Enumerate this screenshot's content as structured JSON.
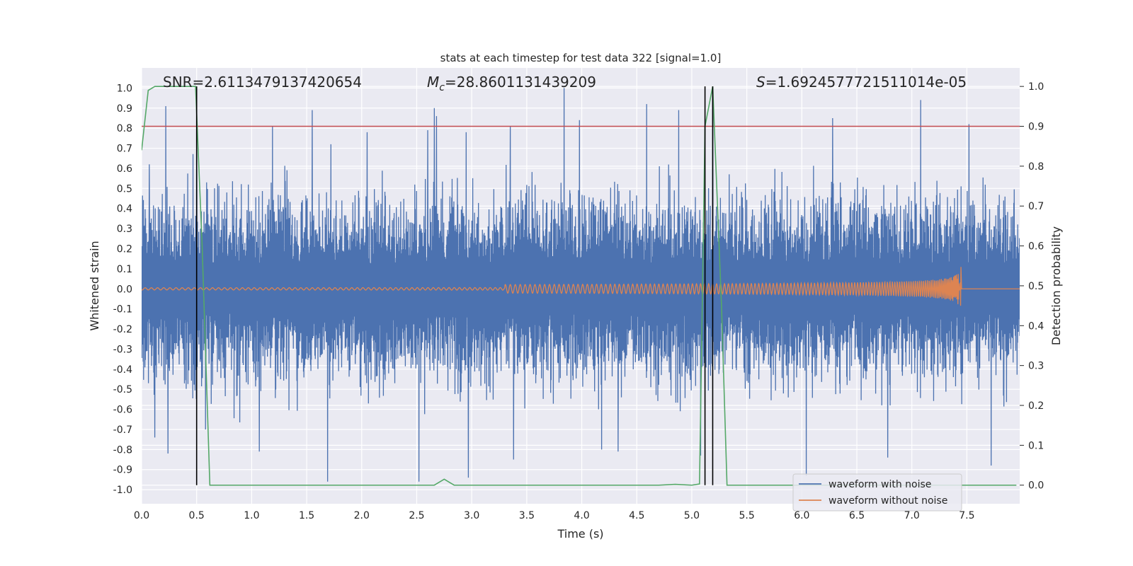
{
  "chart_data": {
    "type": "line",
    "title": "stats at each timestep for test data 322 [signal=1.0]",
    "xlabel": "Time (s)",
    "ylabel_left": "Whitened strain",
    "ylabel_right": "Detection probability",
    "xlim": [
      0.0,
      7.98
    ],
    "ylim_left": [
      -1.07,
      1.1
    ],
    "ylim_right": [
      -0.0466,
      1.0464
    ],
    "x_ticks": [
      "0.0",
      "0.5",
      "1.0",
      "1.5",
      "2.0",
      "2.5",
      "3.0",
      "3.5",
      "4.0",
      "4.5",
      "5.0",
      "5.5",
      "6.0",
      "6.5",
      "7.0",
      "7.5"
    ],
    "y_ticks_left": [
      "1.0",
      "0.9",
      "0.8",
      "0.7",
      "0.6",
      "0.5",
      "0.4",
      "0.3",
      "0.2",
      "0.1",
      "0.0",
      "-0.1",
      "-0.2",
      "-0.3",
      "-0.4",
      "-0.5",
      "-0.6",
      "-0.7",
      "-0.8",
      "-0.9",
      "-1.0"
    ],
    "y_ticks_right": [
      "1.0",
      "0.9",
      "0.8",
      "0.7",
      "0.6",
      "0.5",
      "0.4",
      "0.3",
      "0.2",
      "0.1",
      "0.0"
    ],
    "annotations": {
      "snr": "SNR=2.6113479137420654",
      "mc_symbol": "M",
      "mc_sub": "c",
      "mc_value": "=28.8601131439209",
      "s_symbol": "S",
      "s_value": "=1.6924577721511014e-05"
    },
    "threshold": {
      "axis": "right",
      "value": 0.9,
      "color": "#c44e52"
    },
    "vertical_markers": [
      0.5,
      5.12,
      5.19
    ],
    "series": [
      {
        "name": "waveform with noise",
        "color": "#4c72b0",
        "axis": "left",
        "t_range": [
          0.0,
          7.98
        ],
        "envelope": 0.47,
        "peaks_high": [
          [
            0.07,
            0.62
          ],
          [
            0.22,
            0.91
          ],
          [
            0.5,
            0.96
          ],
          [
            1.19,
            0.81
          ],
          [
            1.55,
            0.89
          ],
          [
            1.72,
            0.72
          ],
          [
            2.05,
            0.78
          ],
          [
            2.6,
            0.79
          ],
          [
            2.66,
            0.9
          ],
          [
            2.68,
            0.86
          ],
          [
            2.95,
            0.78
          ],
          [
            3.35,
            0.81
          ],
          [
            3.84,
            1.0
          ],
          [
            3.98,
            0.84
          ],
          [
            4.59,
            0.92
          ],
          [
            4.88,
            0.89
          ],
          [
            5.19,
            1.0
          ],
          [
            6.28,
            0.85
          ],
          [
            7.08,
            0.94
          ],
          [
            7.52,
            0.82
          ]
        ],
        "peaks_low": [
          [
            0.12,
            -0.74
          ],
          [
            0.24,
            -0.82
          ],
          [
            0.58,
            -0.7
          ],
          [
            1.07,
            -0.81
          ],
          [
            1.69,
            -0.96
          ],
          [
            2.52,
            -0.96
          ],
          [
            2.97,
            -0.94
          ],
          [
            3.38,
            -0.85
          ],
          [
            4.18,
            -0.8
          ],
          [
            4.33,
            -0.81
          ],
          [
            5.08,
            -0.83
          ],
          [
            6.04,
            -0.93
          ],
          [
            6.78,
            -0.84
          ],
          [
            7.72,
            -0.88
          ]
        ]
      },
      {
        "name": "waveform without noise",
        "color": "#dd8452",
        "axis": "left",
        "t_merge": 7.45,
        "t_start": 3.3,
        "amp_peak": 0.14
      },
      {
        "name": "detection probability",
        "color": "#55a868",
        "axis": "right",
        "x": [
          0.0,
          0.06,
          0.12,
          0.2,
          0.49,
          0.55,
          0.62,
          0.63,
          2.66,
          2.75,
          2.84,
          2.9,
          4.7,
          4.85,
          5.0,
          5.07,
          5.12,
          5.19,
          5.27,
          5.32,
          7.95
        ],
        "y": [
          0.84,
          0.99,
          1.0,
          1.0,
          1.0,
          0.6,
          0.0,
          0.0,
          0.0,
          0.015,
          0.0,
          0.0,
          0.0,
          0.002,
          0.0,
          0.003,
          0.9,
          1.0,
          0.45,
          0.0,
          0.0
        ]
      }
    ],
    "legend": [
      {
        "label": "waveform with noise",
        "color": "#4c72b0"
      },
      {
        "label": "waveform without noise",
        "color": "#dd8452"
      }
    ],
    "legend_position": "lower-right"
  }
}
